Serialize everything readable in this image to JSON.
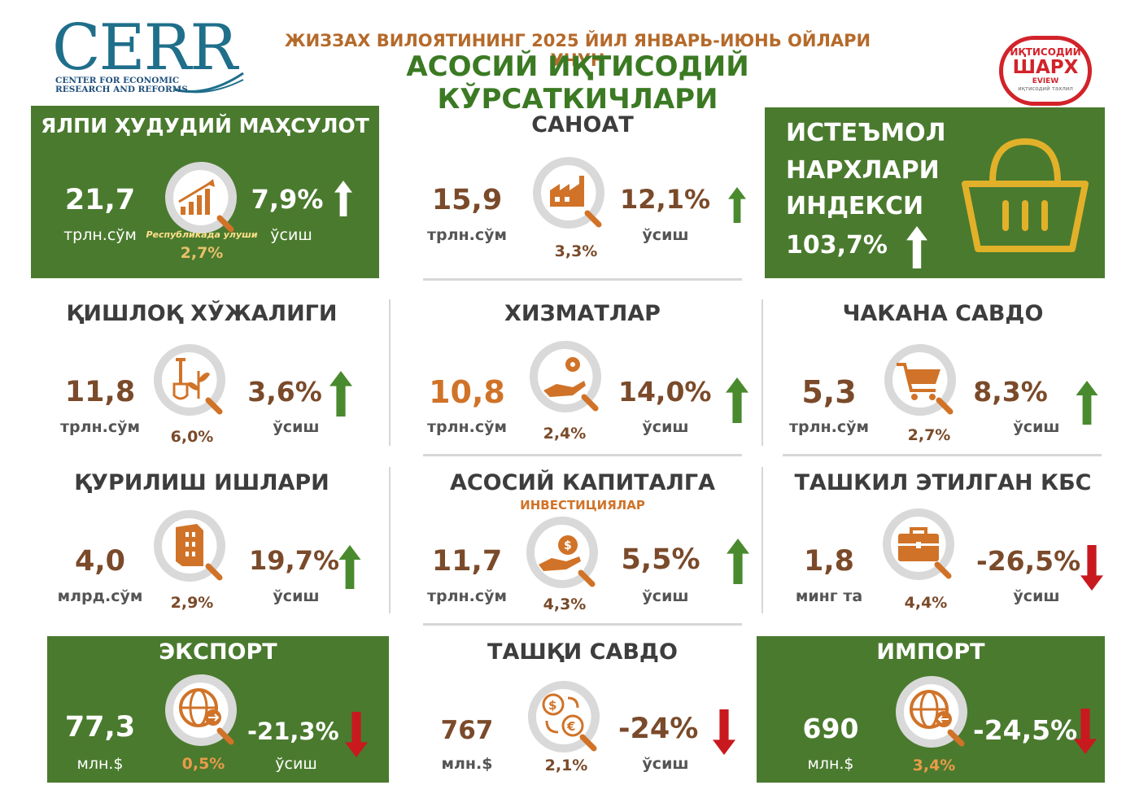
{
  "header": {
    "logo_big": "CERR",
    "logo_small_line1": "CENTER FOR ECONOMIC",
    "logo_small_line2": "RESEARCH AND REFORMS",
    "title_line1": "ЖИЗЗАХ ВИЛОЯТИНИНГ 2025 ЙИЛ ЯНВАРЬ-ИЮНЬ ОЙЛАРИ УЧУН",
    "title_line2": "АСОСИЙ ИҚТИСОДИЙ КЎРСАТКИЧЛАРИ",
    "badge_line1": "ИҚТИСОДИЙ",
    "badge_line2": "ШАРХ",
    "badge_line3": "ЕVIEW",
    "badge_line4": "иқтисодий тахлил"
  },
  "colors": {
    "green": "#4a7a2e",
    "brown": "#7a4a2a",
    "orange": "#d07328",
    "red": "#c8191f",
    "up_arrow": "#4a8a2e"
  },
  "cards": {
    "gdp": {
      "title": "ЯЛПИ ҲУДУДИЙ МАҲСУЛОТ",
      "value": "21,7",
      "unit": "трлн.сўм",
      "sub": "Республикада улуши",
      "share": "2,7%",
      "growth": "7,9%",
      "growth_label": "ўсиш",
      "icon": "growth-chart-icon",
      "trend": "up"
    },
    "industry": {
      "title": "САНОАТ",
      "value": "15,9",
      "unit": "трлн.сўм",
      "share": "3,3%",
      "growth": "12,1%",
      "growth_label": "ўсиш",
      "icon": "factory-icon",
      "trend": "up"
    },
    "cpi": {
      "title_line1": "ИСТЕЪМОЛ",
      "title_line2": "НАРХЛАРИ",
      "title_line3": "ИНДЕКСИ",
      "value": "103,7%",
      "icon": "basket-icon",
      "trend": "up"
    },
    "agriculture": {
      "title": "ҚИШЛОҚ ХЎЖАЛИГИ",
      "value": "11,8",
      "unit": "трлн.сўм",
      "share": "6,0%",
      "growth": "3,6%",
      "growth_label": "ўсиш",
      "icon": "shovel-plant-icon",
      "trend": "up"
    },
    "services": {
      "title": "ХИЗМАТЛАР",
      "value": "10,8",
      "unit": "трлн.сўм",
      "share": "2,4%",
      "growth": "14,0%",
      "growth_label": "ўсиш",
      "icon": "hand-gear-icon",
      "trend": "up"
    },
    "retail": {
      "title": "ЧАКАНА САВДО",
      "value": "5,3",
      "unit": "трлн.сўм",
      "share": "2,7%",
      "growth": "8,3%",
      "growth_label": "ўсиш",
      "icon": "cart-icon",
      "trend": "up"
    },
    "construction": {
      "title": "ҚУРИЛИШ ИШЛАРИ",
      "value": "4,0",
      "unit": "млрд.сўм",
      "share": "2,9%",
      "growth": "19,7%",
      "growth_label": "ўсиш",
      "icon": "building-icon",
      "trend": "up"
    },
    "investment": {
      "title": "АСОСИЙ КАПИТАЛГА",
      "subtitle": "ИНВЕСТИЦИЯЛАР",
      "value": "11,7",
      "unit": "трлн.сўм",
      "share": "4,3%",
      "growth": "5,5%",
      "growth_label": "ўсиш",
      "icon": "money-hand-icon",
      "trend": "up"
    },
    "new_business": {
      "title": "ТАШКИЛ ЭТИЛГАН КБС",
      "value": "1,8",
      "unit": "минг та",
      "share": "4,4%",
      "growth": "-26,5%",
      "growth_label": "ўсиш",
      "icon": "briefcase-icon",
      "trend": "down"
    },
    "export": {
      "title": "ЭКСПОРТ",
      "value": "77,3",
      "unit": "млн.$",
      "share": "0,5%",
      "growth": "-21,3%",
      "growth_label": "ўсиш",
      "icon": "globe-export-icon",
      "trend": "down"
    },
    "foreign_trade": {
      "title": "ТАШҚИ САВДО",
      "value": "767",
      "unit": "млн.$",
      "share": "2,1%",
      "growth": "-24%",
      "growth_label": "ўсиш",
      "icon": "currency-exchange-icon",
      "trend": "down"
    },
    "import": {
      "title": "ИМПОРТ",
      "value": "690",
      "unit": "млн.$",
      "share": "3,4%",
      "growth": "-24,5%",
      "growth_label": "",
      "icon": "globe-import-icon",
      "trend": "down"
    }
  }
}
